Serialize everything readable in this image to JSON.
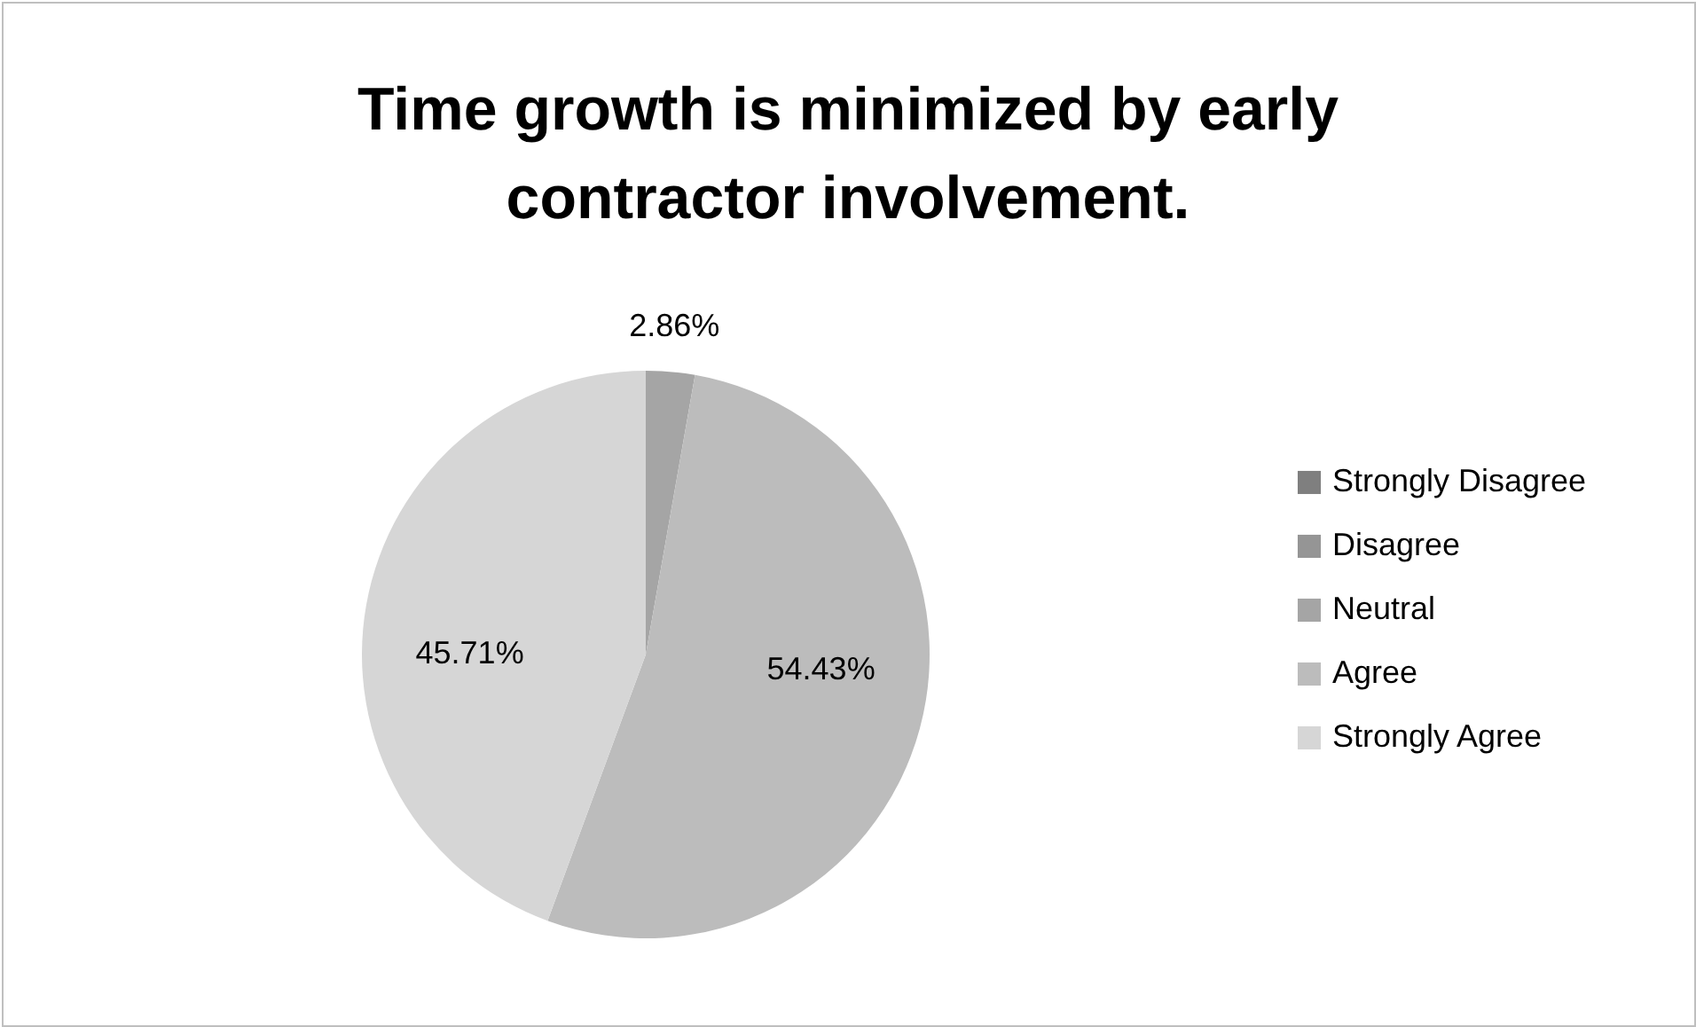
{
  "chart_data": {
    "type": "pie",
    "title": "Time growth is minimized by early contractor involvement.",
    "categories": [
      "Strongly Disagree",
      "Disagree",
      "Neutral",
      "Agree",
      "Strongly Agree"
    ],
    "values": [
      0,
      0,
      2.86,
      54.43,
      45.71
    ],
    "value_labels": [
      null,
      null,
      "2.86%",
      "54.43%",
      "45.71%"
    ],
    "colors": [
      "#7f7f7f",
      "#959595",
      "#a5a5a5",
      "#bcbcbc",
      "#d6d6d6"
    ],
    "legend": "right"
  }
}
